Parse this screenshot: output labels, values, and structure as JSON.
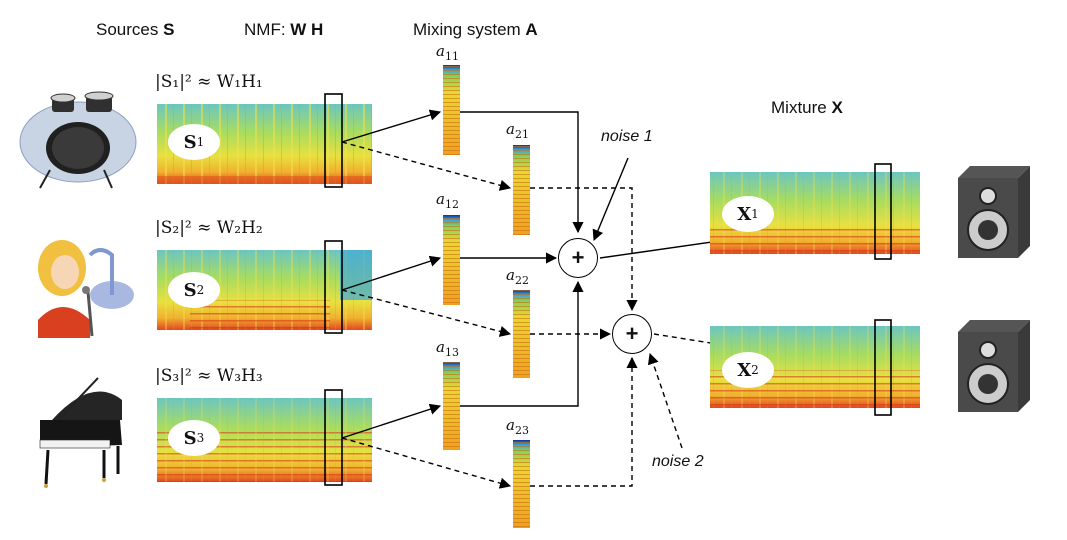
{
  "headers": {
    "sources_prefix": "Sources ",
    "sources_symbol": "S",
    "nmf_prefix": "NMF: ",
    "nmf_symbol": "W H",
    "mixing_prefix": "Mixing system ",
    "mixing_symbol": "A",
    "mixture_prefix": "Mixture ",
    "mixture_symbol": "X"
  },
  "sources": [
    {
      "approx_label": "|S₁|² ≈ W₁H₁",
      "spec_label": "S",
      "spec_sub": "1",
      "icon": "drum-kit-icon"
    },
    {
      "approx_label": "|S₂|² ≈ W₂H₂",
      "spec_label": "S",
      "spec_sub": "2",
      "icon": "singer-icon"
    },
    {
      "approx_label": "|S₃|² ≈ W₃H₃",
      "spec_label": "S",
      "spec_sub": "3",
      "icon": "grand-piano-icon"
    }
  ],
  "coefficients": [
    {
      "sym": "a",
      "sub": "11"
    },
    {
      "sym": "a",
      "sub": "21"
    },
    {
      "sym": "a",
      "sub": "12"
    },
    {
      "sym": "a",
      "sub": "22"
    },
    {
      "sym": "a",
      "sub": "13"
    },
    {
      "sym": "a",
      "sub": "23"
    }
  ],
  "mixers": [
    {
      "label": "+"
    },
    {
      "label": "+"
    }
  ],
  "noise": [
    {
      "label": "noise 1"
    },
    {
      "label": "noise 2"
    }
  ],
  "mixtures": [
    {
      "spec_label": "X",
      "spec_sub": "1",
      "icon": "speaker-icon"
    },
    {
      "spec_label": "X",
      "spec_sub": "2",
      "icon": "speaker-icon"
    }
  ],
  "colors": {
    "spec_yellow": "#e8e83a",
    "spec_green": "#64c864",
    "spec_cyan": "#40b8d8",
    "spec_red": "#d8301c",
    "spec_orange": "#f0a020",
    "line": "#000000"
  }
}
